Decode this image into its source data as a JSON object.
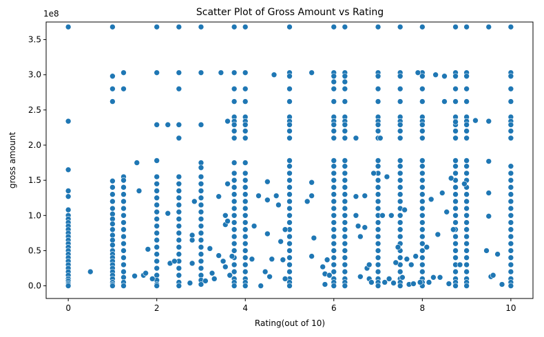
{
  "chart_data": {
    "type": "scatter",
    "title": "Scatter Plot of Gross Amount vs Rating",
    "xlabel": "Rating(out of 10)",
    "ylabel": "gross amount",
    "y_offset_text": "1e8",
    "xlim": [
      -0.5,
      10.5
    ],
    "ylim": [
      -0.18,
      3.75
    ],
    "x_ticks": [
      0,
      2,
      4,
      6,
      8,
      10
    ],
    "x_tick_labels": [
      "0",
      "2",
      "4",
      "6",
      "8",
      "10"
    ],
    "y_ticks": [
      0.0,
      0.5,
      1.0,
      1.5,
      2.0,
      2.5,
      3.0,
      3.5
    ],
    "y_tick_labels": [
      "0.0",
      "0.5",
      "1.0",
      "1.5",
      "2.0",
      "2.5",
      "3.0",
      "3.5"
    ],
    "y_unit_multiplier": 100000000,
    "grid": false,
    "point_color": "#1f77b4",
    "point_edge_color": "#ffffff",
    "columns": [
      {
        "x": 0,
        "values": [
          3.68,
          2.34,
          1.65,
          1.35,
          1.27,
          1.08,
          1.0,
          0.95,
          0.9,
          0.85,
          0.8,
          0.75,
          0.7,
          0.65,
          0.6,
          0.55,
          0.5,
          0.45,
          0.4,
          0.35,
          0.3,
          0.25,
          0.2,
          0.15,
          0.1,
          0.07,
          0.04,
          0.02,
          0.0
        ]
      },
      {
        "x": 1,
        "values": [
          3.68,
          2.98,
          2.8,
          2.62,
          1.49,
          1.4,
          1.3,
          1.2,
          1.1,
          1.02,
          0.95,
          0.88,
          0.8,
          0.72,
          0.65,
          0.58,
          0.5,
          0.45,
          0.4,
          0.35,
          0.3,
          0.25,
          0.2,
          0.15,
          0.1,
          0.05,
          0.02,
          0.0
        ]
      },
      {
        "x": 1.25,
        "values": [
          3.03,
          2.8,
          1.55,
          1.5,
          1.4,
          1.3,
          1.2,
          1.1,
          1.0,
          0.9,
          0.8,
          0.7,
          0.6,
          0.5,
          0.4,
          0.3,
          0.2,
          0.12,
          0.05,
          0.0
        ]
      },
      {
        "x": 2,
        "values": [
          3.68,
          3.03,
          2.29,
          1.78,
          1.55,
          1.45,
          1.35,
          1.25,
          1.15,
          1.05,
          0.95,
          0.85,
          0.75,
          0.65,
          0.55,
          0.45,
          0.35,
          0.25,
          0.15,
          0.08,
          0.02,
          0.0
        ]
      },
      {
        "x": 2.5,
        "values": [
          3.68,
          3.03,
          2.8,
          2.29,
          2.1,
          1.55,
          1.45,
          1.35,
          1.25,
          1.15,
          1.05,
          0.95,
          0.85,
          0.75,
          0.65,
          0.55,
          0.45,
          0.35,
          0.25,
          0.15,
          0.05,
          0.0
        ]
      },
      {
        "x": 3,
        "values": [
          3.68,
          3.03,
          2.29,
          1.75,
          1.68,
          1.55,
          1.45,
          1.35,
          1.25,
          1.15,
          1.05,
          0.95,
          0.85,
          0.75,
          0.65,
          0.55,
          0.45,
          0.35,
          0.25,
          0.15,
          0.08,
          0.02
        ]
      },
      {
        "x": 3.75,
        "values": [
          3.68,
          3.03,
          2.8,
          2.62,
          2.4,
          2.34,
          2.29,
          2.2,
          2.1,
          1.75,
          1.6,
          1.5,
          1.4,
          1.3,
          1.2,
          1.1,
          1.0,
          0.9,
          0.8,
          0.7,
          0.6,
          0.5,
          0.4,
          0.3,
          0.2,
          0.1,
          0.05,
          0.0
        ]
      },
      {
        "x": 4,
        "values": [
          3.68,
          3.03,
          2.8,
          2.62,
          2.4,
          2.34,
          2.29,
          2.2,
          2.1,
          1.75,
          1.6,
          1.5,
          1.4,
          1.3,
          1.2,
          1.1,
          1.0,
          0.9,
          0.8,
          0.7,
          0.6,
          0.5,
          0.4,
          0.3,
          0.2,
          0.1,
          0.05,
          0.0
        ]
      },
      {
        "x": 5,
        "values": [
          3.68,
          3.03,
          2.98,
          2.8,
          2.62,
          2.4,
          2.34,
          2.29,
          2.2,
          2.1,
          1.78,
          1.7,
          1.6,
          1.5,
          1.4,
          1.3,
          1.2,
          1.1,
          1.0,
          0.9,
          0.8,
          0.7,
          0.6,
          0.5,
          0.4,
          0.3,
          0.2,
          0.1,
          0.05,
          0.0
        ]
      },
      {
        "x": 6,
        "values": [
          3.68,
          3.03,
          2.98,
          2.9,
          2.8,
          2.62,
          2.4,
          2.34,
          2.29,
          2.2,
          2.1,
          1.78,
          1.7,
          1.6,
          1.5,
          1.4,
          1.3,
          1.2,
          1.1,
          1.0,
          0.9,
          0.8,
          0.7,
          0.6,
          0.5,
          0.4,
          0.3,
          0.2,
          0.1,
          0.05,
          0.0
        ]
      },
      {
        "x": 6.25,
        "values": [
          3.68,
          3.03,
          2.98,
          2.9,
          2.8,
          2.62,
          2.4,
          2.34,
          2.29,
          2.2,
          2.1,
          1.78,
          1.7,
          1.6,
          1.5,
          1.4,
          1.3,
          1.2,
          1.1,
          1.0,
          0.9,
          0.8,
          0.7,
          0.6,
          0.5,
          0.4,
          0.3,
          0.2,
          0.1,
          0.05,
          0.0
        ]
      },
      {
        "x": 7,
        "values": [
          3.68,
          3.03,
          2.98,
          2.8,
          2.62,
          2.4,
          2.34,
          2.29,
          2.2,
          2.1,
          1.78,
          1.7,
          1.6,
          1.5,
          1.4,
          1.3,
          1.2,
          1.1,
          1.0,
          0.9,
          0.8,
          0.7,
          0.6,
          0.5,
          0.4,
          0.3,
          0.2,
          0.1,
          0.05,
          0.0
        ]
      },
      {
        "x": 7.5,
        "values": [
          3.68,
          3.03,
          2.98,
          2.8,
          2.62,
          2.4,
          2.34,
          2.29,
          2.2,
          2.1,
          1.78,
          1.7,
          1.6,
          1.5,
          1.4,
          1.3,
          1.2,
          1.1,
          1.0,
          0.9,
          0.8,
          0.7,
          0.6,
          0.5,
          0.4,
          0.3,
          0.2,
          0.1,
          0.05,
          0.0
        ]
      },
      {
        "x": 8,
        "values": [
          3.68,
          3.03,
          2.98,
          2.8,
          2.62,
          2.4,
          2.34,
          2.29,
          2.2,
          2.1,
          1.78,
          1.7,
          1.6,
          1.5,
          1.4,
          1.3,
          1.2,
          1.1,
          1.0,
          0.9,
          0.8,
          0.7,
          0.6,
          0.5,
          0.4,
          0.3,
          0.2,
          0.1,
          0.05,
          0.0
        ]
      },
      {
        "x": 8.75,
        "values": [
          3.68,
          3.03,
          2.98,
          2.8,
          2.62,
          2.4,
          2.34,
          2.29,
          2.2,
          2.1,
          1.78,
          1.7,
          1.6,
          1.5,
          1.4,
          1.3,
          1.2,
          1.1,
          1.0,
          0.9,
          0.8,
          0.7,
          0.6,
          0.5,
          0.4,
          0.3,
          0.2,
          0.1,
          0.05,
          0.0
        ]
      },
      {
        "x": 9,
        "values": [
          3.68,
          3.03,
          2.98,
          2.8,
          2.62,
          2.4,
          2.34,
          2.29,
          2.2,
          2.1,
          1.78,
          1.7,
          1.6,
          1.5,
          1.4,
          1.3,
          1.2,
          1.1,
          1.0,
          0.9,
          0.8,
          0.7,
          0.6,
          0.5,
          0.4,
          0.3,
          0.2,
          0.1,
          0.05,
          0.0
        ]
      },
      {
        "x": 10,
        "values": [
          3.68,
          3.03,
          2.98,
          2.8,
          2.62,
          2.4,
          2.34,
          2.29,
          2.2,
          2.1,
          1.7,
          1.6,
          1.5,
          1.4,
          1.3,
          1.2,
          1.1,
          1.0,
          0.9,
          0.8,
          0.7,
          0.6,
          0.5,
          0.4,
          0.3,
          0.2,
          0.1,
          0.05,
          0.0
        ]
      }
    ],
    "points": [
      [
        0.5,
        0.2
      ],
      [
        1.5,
        0.14
      ],
      [
        1.55,
        1.75
      ],
      [
        1.6,
        1.35
      ],
      [
        1.7,
        0.15
      ],
      [
        1.75,
        0.18
      ],
      [
        1.8,
        0.52
      ],
      [
        1.9,
        0.1
      ],
      [
        2.25,
        2.29
      ],
      [
        2.25,
        1.03
      ],
      [
        2.3,
        0.32
      ],
      [
        2.4,
        0.35
      ],
      [
        2.75,
        0.04
      ],
      [
        2.8,
        0.65
      ],
      [
        2.8,
        0.72
      ],
      [
        2.85,
        1.2
      ],
      [
        2.8,
        0.32
      ],
      [
        3.1,
        0.07
      ],
      [
        3.2,
        0.53
      ],
      [
        3.25,
        0.18
      ],
      [
        3.3,
        0.1
      ],
      [
        3.4,
        0.43
      ],
      [
        3.4,
        1.27
      ],
      [
        3.45,
        3.03
      ],
      [
        3.5,
        0.35
      ],
      [
        3.55,
        0.27
      ],
      [
        3.55,
        0.87
      ],
      [
        3.6,
        1.45
      ],
      [
        3.6,
        2.34
      ],
      [
        3.55,
        1.0
      ],
      [
        3.6,
        0.92
      ],
      [
        3.65,
        0.15
      ],
      [
        3.7,
        0.42
      ],
      [
        4.15,
        0.38
      ],
      [
        4.2,
        0.85
      ],
      [
        4.3,
        1.28
      ],
      [
        4.35,
        0.0
      ],
      [
        4.45,
        0.2
      ],
      [
        4.5,
        1.22
      ],
      [
        4.5,
        0.74
      ],
      [
        4.5,
        1.48
      ],
      [
        4.55,
        0.13
      ],
      [
        4.6,
        0.38
      ],
      [
        4.65,
        3.0
      ],
      [
        4.7,
        1.28
      ],
      [
        4.75,
        1.15
      ],
      [
        4.8,
        0.63
      ],
      [
        4.85,
        0.37
      ],
      [
        4.9,
        0.1
      ],
      [
        4.9,
        0.8
      ],
      [
        5.4,
        1.2
      ],
      [
        5.5,
        1.28
      ],
      [
        5.5,
        1.47
      ],
      [
        5.5,
        3.03
      ],
      [
        5.55,
        0.68
      ],
      [
        5.5,
        0.42
      ],
      [
        5.75,
        0.27
      ],
      [
        5.8,
        0.02
      ],
      [
        5.85,
        0.37
      ],
      [
        5.8,
        0.17
      ],
      [
        5.9,
        0.15
      ],
      [
        6.5,
        2.1
      ],
      [
        6.5,
        1.27
      ],
      [
        6.5,
        1.0
      ],
      [
        6.55,
        0.85
      ],
      [
        6.6,
        0.7
      ],
      [
        6.6,
        0.13
      ],
      [
        6.7,
        1.28
      ],
      [
        6.7,
        0.83
      ],
      [
        6.75,
        0.25
      ],
      [
        6.8,
        0.3
      ],
      [
        6.8,
        0.1
      ],
      [
        6.85,
        0.05
      ],
      [
        6.9,
        1.6
      ],
      [
        7.05,
        2.1
      ],
      [
        7.1,
        1.0
      ],
      [
        7.15,
        0.05
      ],
      [
        7.2,
        1.55
      ],
      [
        7.25,
        0.1
      ],
      [
        7.3,
        1.0
      ],
      [
        7.35,
        0.04
      ],
      [
        7.4,
        0.33
      ],
      [
        7.45,
        0.55
      ],
      [
        7.55,
        0.12
      ],
      [
        7.6,
        1.08
      ],
      [
        7.65,
        0.38
      ],
      [
        7.7,
        0.02
      ],
      [
        7.75,
        0.3
      ],
      [
        7.8,
        0.03
      ],
      [
        7.85,
        0.42
      ],
      [
        7.9,
        3.03
      ],
      [
        7.95,
        0.05
      ],
      [
        8.1,
        0.55
      ],
      [
        8.15,
        0.05
      ],
      [
        8.2,
        1.23
      ],
      [
        8.25,
        0.12
      ],
      [
        8.3,
        3.0
      ],
      [
        8.35,
        0.73
      ],
      [
        8.4,
        0.12
      ],
      [
        8.45,
        1.32
      ],
      [
        8.5,
        2.62
      ],
      [
        8.5,
        2.98
      ],
      [
        8.55,
        1.05
      ],
      [
        8.6,
        0.03
      ],
      [
        8.65,
        1.53
      ],
      [
        8.7,
        0.8
      ],
      [
        8.75,
        2.33
      ],
      [
        8.85,
        0.3
      ],
      [
        8.95,
        1.45
      ],
      [
        9.2,
        2.35
      ],
      [
        9.45,
        0.5
      ],
      [
        9.5,
        1.32
      ],
      [
        9.5,
        2.34
      ],
      [
        9.5,
        0.99
      ],
      [
        9.55,
        0.13
      ],
      [
        9.6,
        0.15
      ],
      [
        9.7,
        0.45
      ],
      [
        9.8,
        0.02
      ],
      [
        9.5,
        3.68
      ],
      [
        9.5,
        1.77
      ]
    ]
  }
}
